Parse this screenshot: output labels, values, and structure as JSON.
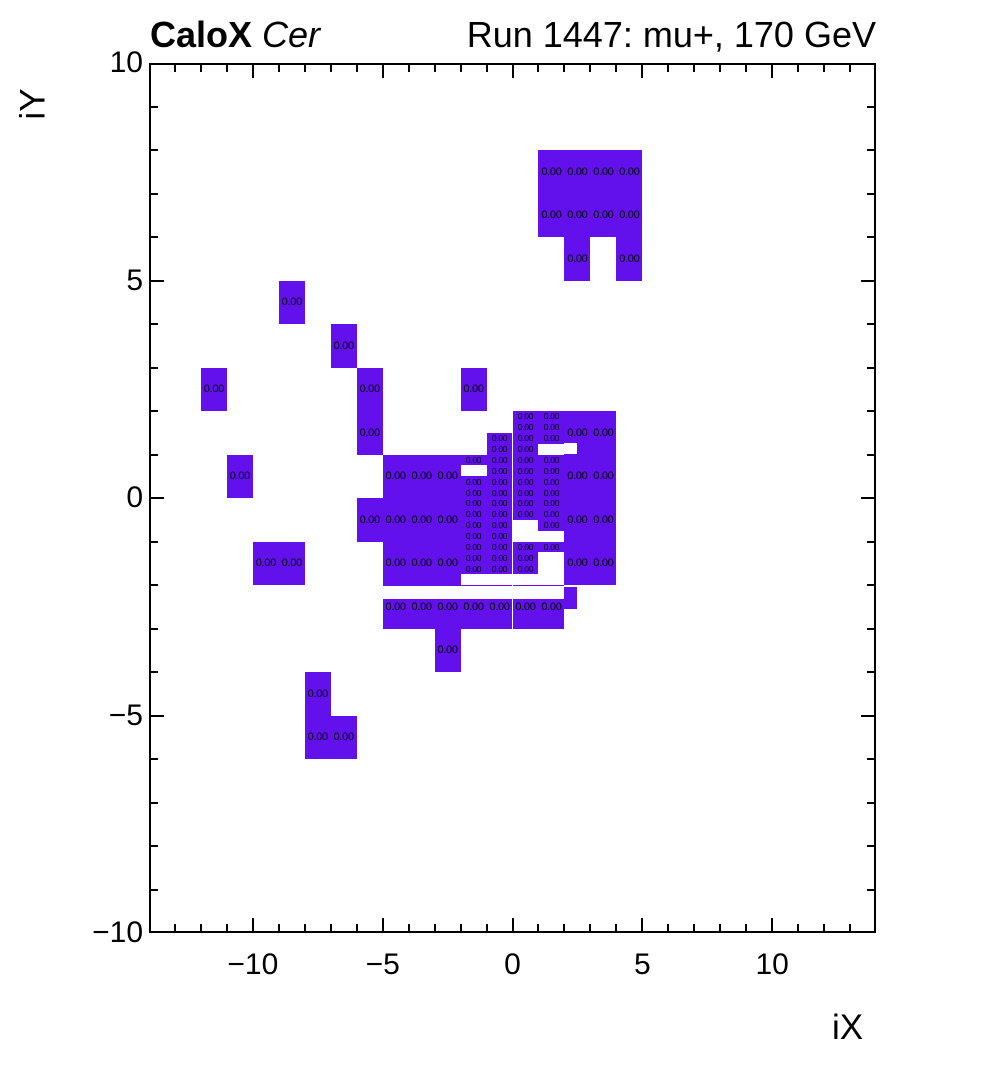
{
  "titles": {
    "left_bold": "CaloX",
    "left_italic": "Cer",
    "right": "Run 1447: mu+, 170 GeV"
  },
  "axes": {
    "x_label": "iX",
    "y_label": "iY"
  },
  "chart_data": {
    "type": "heatmap",
    "title": "CaloX Cer  |  Run 1447: mu+, 170 GeV",
    "xlabel": "iX",
    "ylabel": "iY",
    "xlim": [
      -14,
      14
    ],
    "ylim": [
      -10,
      10
    ],
    "grid": false,
    "x_major_ticks": [
      -10,
      -5,
      0,
      5,
      10
    ],
    "y_major_ticks": [
      10,
      5,
      0,
      -5,
      -10
    ],
    "x_tick_labels": [
      "−10",
      "−5",
      "0",
      "5",
      "10"
    ],
    "y_tick_labels": [
      "10",
      "5",
      "0",
      "−5",
      "−10"
    ],
    "fill_color": "#6211ec",
    "text_color": "#000000",
    "value_text": "0.00",
    "outer_cells": [
      [
        1,
        7
      ],
      [
        2,
        7
      ],
      [
        3,
        7
      ],
      [
        4,
        7
      ],
      [
        1,
        6
      ],
      [
        2,
        6
      ],
      [
        3,
        6
      ],
      [
        4,
        6
      ],
      [
        2,
        5
      ],
      [
        4,
        5
      ],
      [
        -9,
        4
      ],
      [
        -7,
        3
      ],
      [
        -12,
        2
      ],
      [
        -6,
        2
      ],
      [
        -2,
        2
      ],
      [
        -6,
        1
      ],
      [
        -11,
        0
      ],
      [
        -5,
        0
      ],
      [
        -4,
        0
      ],
      [
        -3,
        0
      ],
      [
        -6,
        -1
      ],
      [
        -5,
        -1
      ],
      [
        -4,
        -1
      ],
      [
        -3,
        -1
      ],
      [
        -10,
        -2
      ],
      [
        -9,
        -2
      ],
      [
        -5,
        -2
      ],
      [
        -4,
        -2
      ],
      [
        -3,
        -2
      ],
      [
        -5,
        -3
      ],
      [
        -4,
        -3
      ],
      [
        -3,
        -3
      ],
      [
        -2,
        -3
      ],
      [
        -1,
        -3
      ],
      [
        0,
        -3
      ],
      [
        1,
        -3
      ],
      [
        -3,
        -4
      ],
      [
        -8,
        -5
      ],
      [
        -8,
        -6
      ],
      [
        -7,
        -6
      ],
      [
        2,
        1
      ],
      [
        3,
        1
      ],
      [
        2,
        0
      ],
      [
        3,
        0
      ],
      [
        2,
        -1
      ],
      [
        3,
        -1
      ],
      [
        2,
        -2
      ],
      [
        3,
        -2
      ]
    ],
    "dense_region": {
      "x_left": -2,
      "y_top": 2,
      "cols": 4,
      "col_width": 1,
      "row_height": 0.25,
      "rows": [
        "..TT",
        "..TT",
        ".TTT",
        ".TT.",
        "TTTT",
        ".TTT",
        "TTTT",
        "TTTT",
        "TTTT",
        "TTTT",
        "TT.T",
        "TT..",
        "TTTT",
        "TTT.",
        "TTT."
      ]
    },
    "white_rects": [
      {
        "x1": -5,
        "y1": -2.32,
        "x2": 2,
        "y2": -2.02
      },
      {
        "x1": 2,
        "y1": 1.0,
        "x2": 2.5,
        "y2": 1.27
      }
    ],
    "extra_fill_rects": [
      {
        "x1": 2,
        "y1": -2.55,
        "x2": 2.5,
        "y2": -2.05
      }
    ]
  }
}
